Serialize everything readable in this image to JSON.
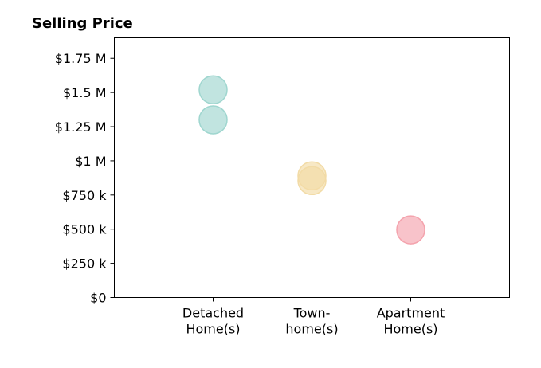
{
  "chart_data": {
    "type": "scatter",
    "title": "Selling Price",
    "xlabel": "",
    "ylabel": "",
    "categories": [
      "Detached\nHome(s)",
      "Town-\nhome(s)",
      "Apartment\nHome(s)"
    ],
    "xlim": [
      -1,
      3
    ],
    "ylim": [
      0,
      1900000
    ],
    "yticks": [
      0,
      250000,
      500000,
      750000,
      1000000,
      1250000,
      1500000,
      1750000
    ],
    "ytick_labels": [
      "$0",
      "$250 k",
      "$500 k",
      "$750 k",
      "$1 M",
      "$1.25 M",
      "$1.5 M",
      "$1.75 M"
    ],
    "grid": false,
    "series": [
      {
        "color": "#9fd6cf",
        "points": [
          {
            "category": 0,
            "value": 1520000
          },
          {
            "category": 0,
            "value": 1300000
          }
        ]
      },
      {
        "color": "#f2dba6",
        "points": [
          {
            "category": 1,
            "value": 890000
          },
          {
            "category": 1,
            "value": 855000
          }
        ]
      },
      {
        "color": "#f4a3ad",
        "points": [
          {
            "category": 2,
            "value": 495000
          }
        ]
      }
    ]
  }
}
